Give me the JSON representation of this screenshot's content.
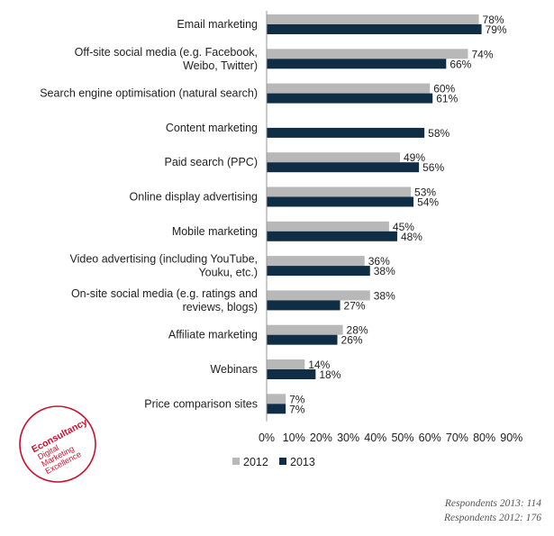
{
  "chart_data": {
    "type": "bar",
    "orientation": "horizontal",
    "categories": [
      [
        "Email marketing"
      ],
      [
        "Off-site social media (e.g. Facebook,",
        "Weibo, Twitter)"
      ],
      [
        "Search engine optimisation (natural search)"
      ],
      [
        "Content marketing"
      ],
      [
        "Paid search (PPC)"
      ],
      [
        "Online display advertising"
      ],
      [
        "Mobile marketing"
      ],
      [
        "Video advertising (including YouTube,",
        "Youku, etc.)"
      ],
      [
        "On-site social media (e.g. ratings and",
        "reviews, blogs)"
      ],
      [
        "Affiliate marketing"
      ],
      [
        "Webinars"
      ],
      [
        "Price comparison sites"
      ]
    ],
    "series": [
      {
        "name": "2012",
        "color": "#b8b8b8",
        "values": [
          78,
          74,
          60,
          null,
          49,
          53,
          45,
          36,
          38,
          28,
          14,
          7
        ],
        "labels": [
          "78%",
          "74%",
          "60%",
          "",
          "49%",
          "53%",
          "45%",
          "36%",
          "38%",
          "28%",
          "14%",
          "7%"
        ]
      },
      {
        "name": "2013",
        "color": "#0f2d45",
        "values": [
          79,
          66,
          61,
          58,
          56,
          54,
          48,
          38,
          27,
          26,
          18,
          7
        ],
        "labels": [
          "79%",
          "66%",
          "61%",
          "58%",
          "56%",
          "54%",
          "48%",
          "38%",
          "27%",
          "26%",
          "18%",
          "7%"
        ]
      }
    ],
    "x_ticks": [
      "0%",
      "10%",
      "20%",
      "30%",
      "40%",
      "50%",
      "60%",
      "70%",
      "80%",
      "90%"
    ],
    "xlim": [
      0,
      90
    ],
    "legend_position": "bottom-left",
    "grid": false
  },
  "footnotes": {
    "respondents_2013": "Respondents 2013: 114",
    "respondents_2012": "Respondents 2012: 176"
  },
  "logo": {
    "title": "Econsultancy",
    "lines": [
      "Digital",
      "Marketing",
      "Excellence"
    ],
    "color": "#c8102e"
  }
}
